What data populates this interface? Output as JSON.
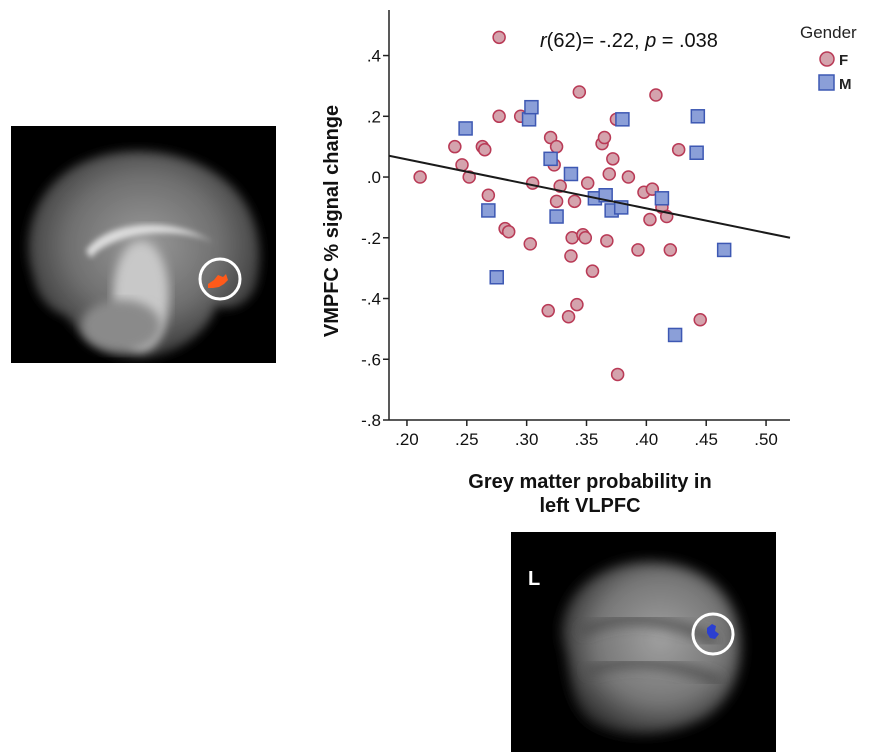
{
  "colors": {
    "female_fill": "#d4a3ad",
    "female_stroke": "#b93a56",
    "male_fill": "#8b9fd8",
    "male_stroke": "#3d58b3",
    "fit_line": "#1a1a1a",
    "sagittal_blob": "#ff5a1a",
    "axial_blob": "#2a3fd1"
  },
  "axial_panel": {
    "hemisphere_label": "L"
  },
  "chart_data": {
    "type": "scatter",
    "xlabel_lines": [
      "Grey matter probability in",
      "left VLPFC"
    ],
    "ylabel": "VMPFC % signal change",
    "annotation": {
      "r": "r",
      "df_r": "(62)= -.22, ",
      "p": "p",
      "p_rest": " = .038"
    },
    "xlim": [
      0.185,
      0.52
    ],
    "ylim": [
      -0.8,
      0.55
    ],
    "x_ticks": [
      0.2,
      0.25,
      0.3,
      0.35,
      0.4,
      0.45,
      0.5
    ],
    "x_tick_labels": [
      ".20",
      ".25",
      ".30",
      ".35",
      ".40",
      ".45",
      ".50"
    ],
    "y_ticks": [
      0.4,
      0.2,
      0.0,
      -0.2,
      -0.4,
      -0.6,
      -0.8
    ],
    "y_tick_labels": [
      ".4",
      ".2",
      ".0",
      "-.2",
      "-.4",
      "-.6",
      "-.8"
    ],
    "fit_line": {
      "x": [
        0.185,
        0.52
      ],
      "y": [
        0.07,
        -0.2
      ]
    },
    "legend": {
      "title": "Gender",
      "entries": [
        "F",
        "M"
      ],
      "position": "top-right"
    },
    "series": [
      {
        "name": "F",
        "marker": "circle",
        "points": [
          [
            0.211,
            0.0
          ],
          [
            0.24,
            0.1
          ],
          [
            0.246,
            0.04
          ],
          [
            0.252,
            0.0
          ],
          [
            0.263,
            0.1
          ],
          [
            0.265,
            0.09
          ],
          [
            0.268,
            -0.06
          ],
          [
            0.277,
            0.46
          ],
          [
            0.277,
            0.2
          ],
          [
            0.282,
            -0.17
          ],
          [
            0.285,
            -0.18
          ],
          [
            0.295,
            0.2
          ],
          [
            0.303,
            -0.22
          ],
          [
            0.305,
            -0.02
          ],
          [
            0.318,
            -0.44
          ],
          [
            0.32,
            0.13
          ],
          [
            0.323,
            0.04
          ],
          [
            0.325,
            0.1
          ],
          [
            0.325,
            -0.08
          ],
          [
            0.328,
            -0.03
          ],
          [
            0.335,
            -0.46
          ],
          [
            0.337,
            -0.26
          ],
          [
            0.338,
            -0.2
          ],
          [
            0.34,
            -0.08
          ],
          [
            0.342,
            -0.42
          ],
          [
            0.344,
            0.28
          ],
          [
            0.347,
            -0.19
          ],
          [
            0.349,
            -0.2
          ],
          [
            0.351,
            -0.02
          ],
          [
            0.355,
            -0.31
          ],
          [
            0.363,
            0.11
          ],
          [
            0.365,
            0.13
          ],
          [
            0.367,
            -0.21
          ],
          [
            0.369,
            0.01
          ],
          [
            0.372,
            0.06
          ],
          [
            0.375,
            0.19
          ],
          [
            0.376,
            -0.65
          ],
          [
            0.385,
            0.0
          ],
          [
            0.393,
            -0.24
          ],
          [
            0.398,
            -0.05
          ],
          [
            0.403,
            -0.14
          ],
          [
            0.405,
            -0.04
          ],
          [
            0.408,
            0.27
          ],
          [
            0.413,
            -0.1
          ],
          [
            0.417,
            -0.13
          ],
          [
            0.42,
            -0.24
          ],
          [
            0.427,
            0.09
          ],
          [
            0.445,
            -0.47
          ]
        ]
      },
      {
        "name": "M",
        "marker": "square",
        "points": [
          [
            0.249,
            0.16
          ],
          [
            0.268,
            -0.11
          ],
          [
            0.275,
            -0.33
          ],
          [
            0.302,
            0.19
          ],
          [
            0.304,
            0.23
          ],
          [
            0.32,
            0.06
          ],
          [
            0.325,
            -0.13
          ],
          [
            0.337,
            0.01
          ],
          [
            0.357,
            -0.07
          ],
          [
            0.366,
            -0.06
          ],
          [
            0.371,
            -0.11
          ],
          [
            0.38,
            0.19
          ],
          [
            0.379,
            -0.1
          ],
          [
            0.413,
            -0.07
          ],
          [
            0.424,
            -0.52
          ],
          [
            0.442,
            0.08
          ],
          [
            0.443,
            0.2
          ],
          [
            0.465,
            -0.24
          ]
        ]
      }
    ]
  }
}
